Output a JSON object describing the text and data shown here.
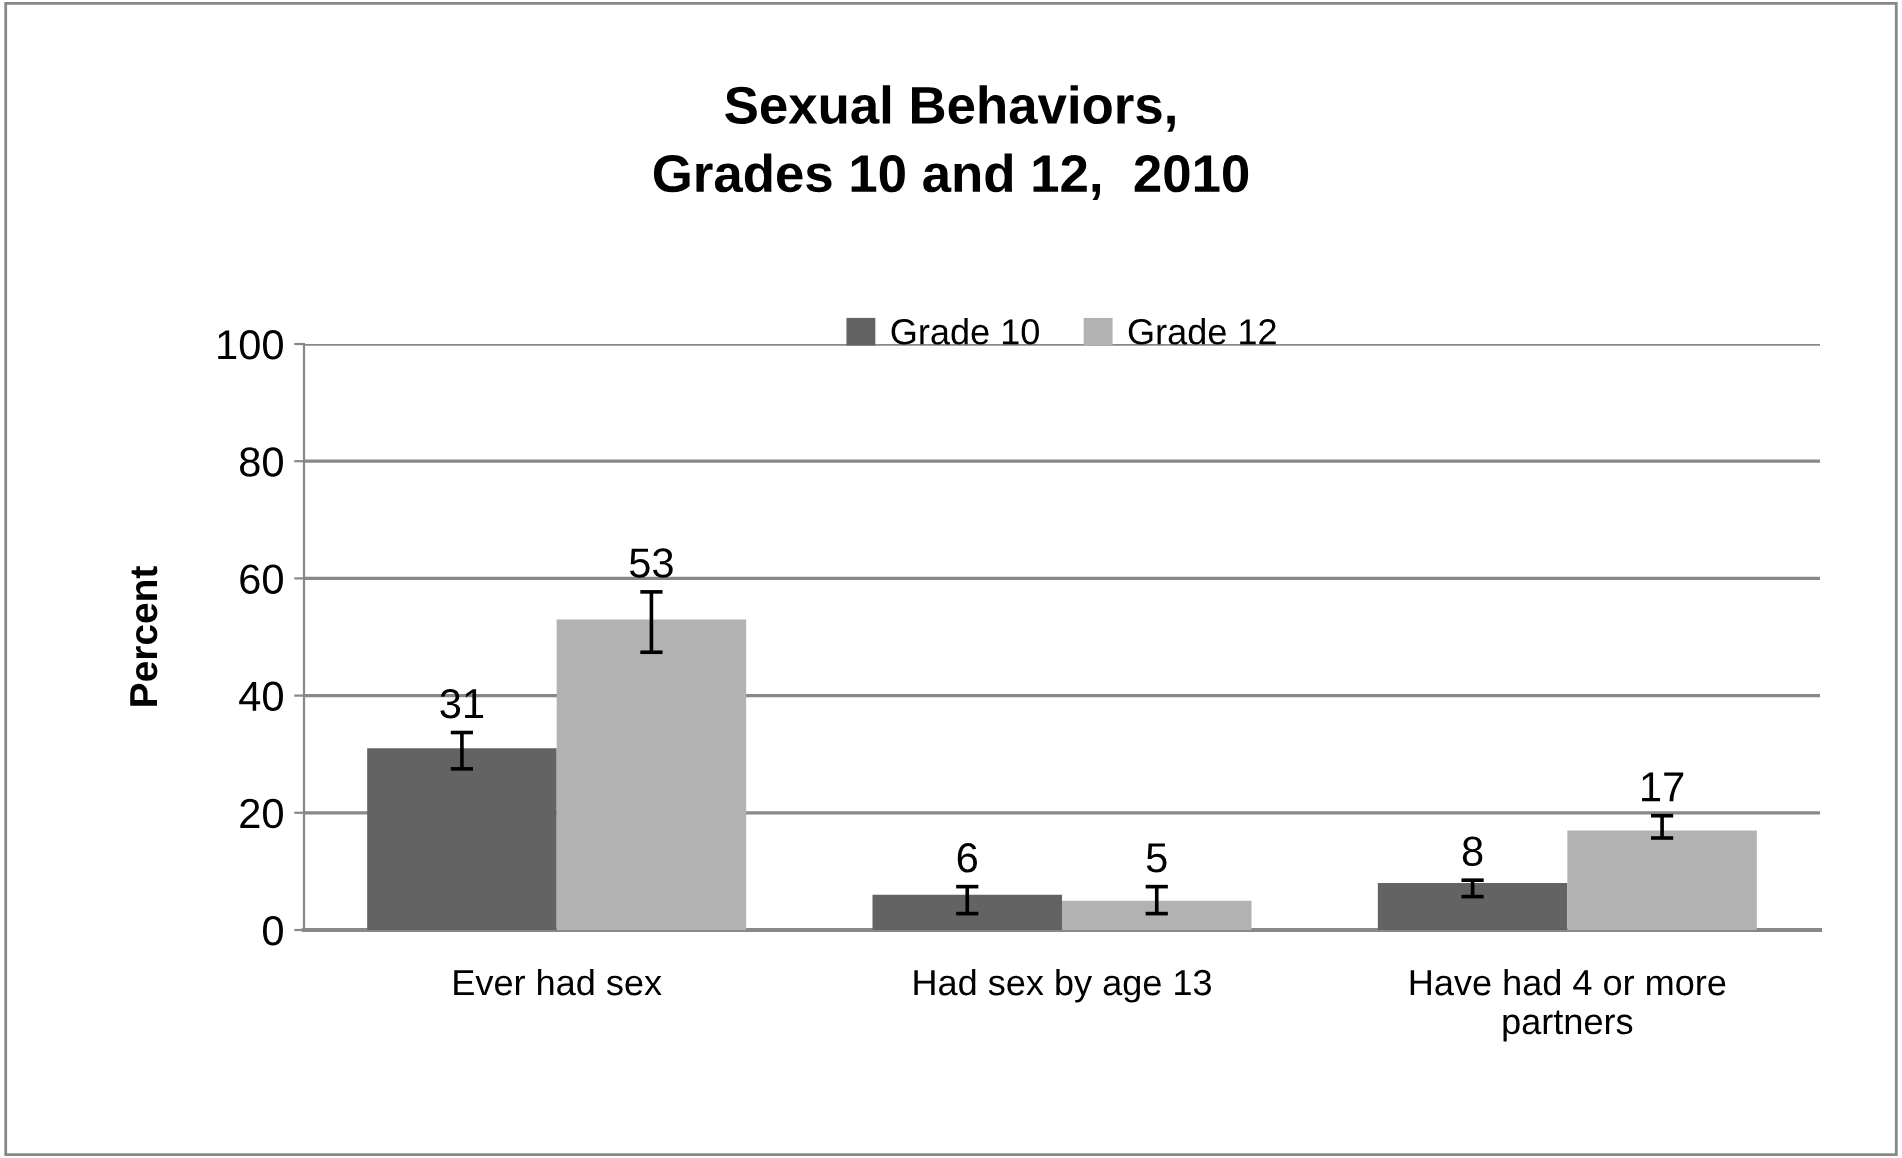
{
  "chart_data": {
    "type": "bar",
    "title": "Sexual Behaviors,\nGrades 10 and 12,  2010",
    "ylabel": "Percent",
    "categories": [
      "Ever had sex",
      "Had sex by age 13",
      "Have had 4 or more\npartners"
    ],
    "series": [
      {
        "name": "Grade 10",
        "color": "#636363",
        "values": [
          31,
          6,
          8
        ],
        "errors": [
          [
            27.5,
            33.7
          ],
          [
            2.8,
            7.4
          ],
          [
            5.7,
            8.5
          ]
        ]
      },
      {
        "name": "Grade 12",
        "color": "#b2b2b2",
        "values": [
          53,
          5,
          17
        ],
        "errors": [
          [
            47.4,
            57.7
          ],
          [
            2.8,
            7.4
          ],
          [
            15.7,
            19.5
          ]
        ]
      }
    ],
    "ylim": [
      0,
      100
    ],
    "yticks": [
      0,
      20,
      40,
      60,
      80,
      100
    ],
    "grid": "y",
    "legend": "top",
    "data_labels": true
  }
}
